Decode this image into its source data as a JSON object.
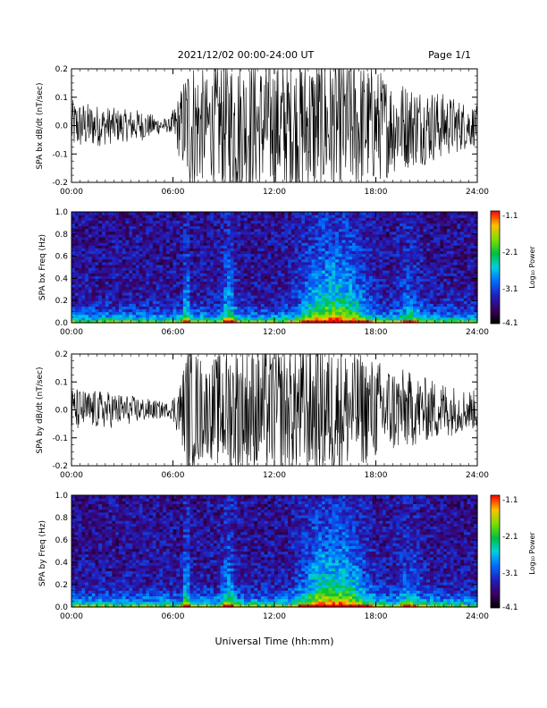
{
  "header": {
    "title": "2021/12/02  00:00-24:00 UT",
    "page": "Page 1/1"
  },
  "xlabel": "Universal Time (hh:mm)",
  "colorbar": {
    "label": "Log₁₀ Power",
    "ticks": [
      "-1.1",
      "-2.1",
      "-3.1",
      "-4.1"
    ],
    "range": [
      -4.1,
      -1.1
    ]
  },
  "chart_data": [
    {
      "type": "line",
      "ylabel": "SPA bx dB/dt (nT/sec)",
      "xlim": [
        0,
        24
      ],
      "ylim": [
        -0.2,
        0.2
      ],
      "x_ticks": [
        "00:00",
        "06:00",
        "12:00",
        "18:00",
        "24:00"
      ],
      "y_ticks": [
        "0.2",
        "0.1",
        "0.0",
        "-0.1",
        "-0.2"
      ],
      "envelope": {
        "hours": [
          0,
          1,
          2,
          3,
          4,
          5,
          5.8,
          6.5,
          6.9,
          7.5,
          8,
          9,
          10,
          11,
          12,
          13,
          14,
          15,
          16,
          17,
          18,
          19,
          20,
          21,
          22,
          23,
          24
        ],
        "amplitude": [
          0.08,
          0.07,
          0.06,
          0.05,
          0.05,
          0.03,
          0.02,
          0.12,
          0.22,
          0.2,
          0.15,
          0.22,
          0.22,
          0.2,
          0.21,
          0.21,
          0.22,
          0.22,
          0.22,
          0.2,
          0.18,
          0.15,
          0.13,
          0.12,
          0.1,
          0.08,
          0.06
        ]
      }
    },
    {
      "type": "heatmap",
      "ylabel": "SPA bx Freq (Hz)",
      "xlim": [
        0,
        24
      ],
      "ylim": [
        0,
        1.0
      ],
      "x_ticks": [
        "00:00",
        "06:00",
        "12:00",
        "18:00",
        "24:00"
      ],
      "y_ticks": [
        "1.0",
        "0.8",
        "0.6",
        "0.4",
        "0.2",
        "0.0"
      ],
      "zlim": [
        -4.1,
        -1.1
      ],
      "zlabel": "Log₁₀ Power"
    },
    {
      "type": "line",
      "ylabel": "SPA by dB/dt (nT/sec)",
      "xlim": [
        0,
        24
      ],
      "ylim": [
        -0.2,
        0.2
      ],
      "x_ticks": [
        "00:00",
        "06:00",
        "12:00",
        "18:00",
        "24:00"
      ],
      "y_ticks": [
        "0.2",
        "0.1",
        "0.0",
        "-0.1",
        "-0.2"
      ],
      "envelope": {
        "hours": [
          0,
          1,
          2,
          3,
          4,
          5,
          5.8,
          6.5,
          6.9,
          7.5,
          8,
          9,
          10,
          11,
          12,
          13,
          14,
          15,
          16,
          17,
          18,
          19,
          20,
          21,
          22,
          23,
          24
        ],
        "amplitude": [
          0.07,
          0.06,
          0.06,
          0.05,
          0.04,
          0.03,
          0.02,
          0.1,
          0.22,
          0.18,
          0.14,
          0.2,
          0.22,
          0.2,
          0.2,
          0.2,
          0.21,
          0.22,
          0.2,
          0.18,
          0.16,
          0.14,
          0.12,
          0.1,
          0.09,
          0.07,
          0.06
        ]
      }
    },
    {
      "type": "heatmap",
      "ylabel": "SPA by Freq (Hz)",
      "xlim": [
        0,
        24
      ],
      "ylim": [
        0,
        1.0
      ],
      "x_ticks": [
        "00:00",
        "06:00",
        "12:00",
        "18:00",
        "24:00"
      ],
      "y_ticks": [
        "1.0",
        "0.8",
        "0.6",
        "0.4",
        "0.2",
        "0.0"
      ],
      "zlim": [
        -4.1,
        -1.1
      ],
      "zlabel": "Log₁₀ Power"
    }
  ]
}
